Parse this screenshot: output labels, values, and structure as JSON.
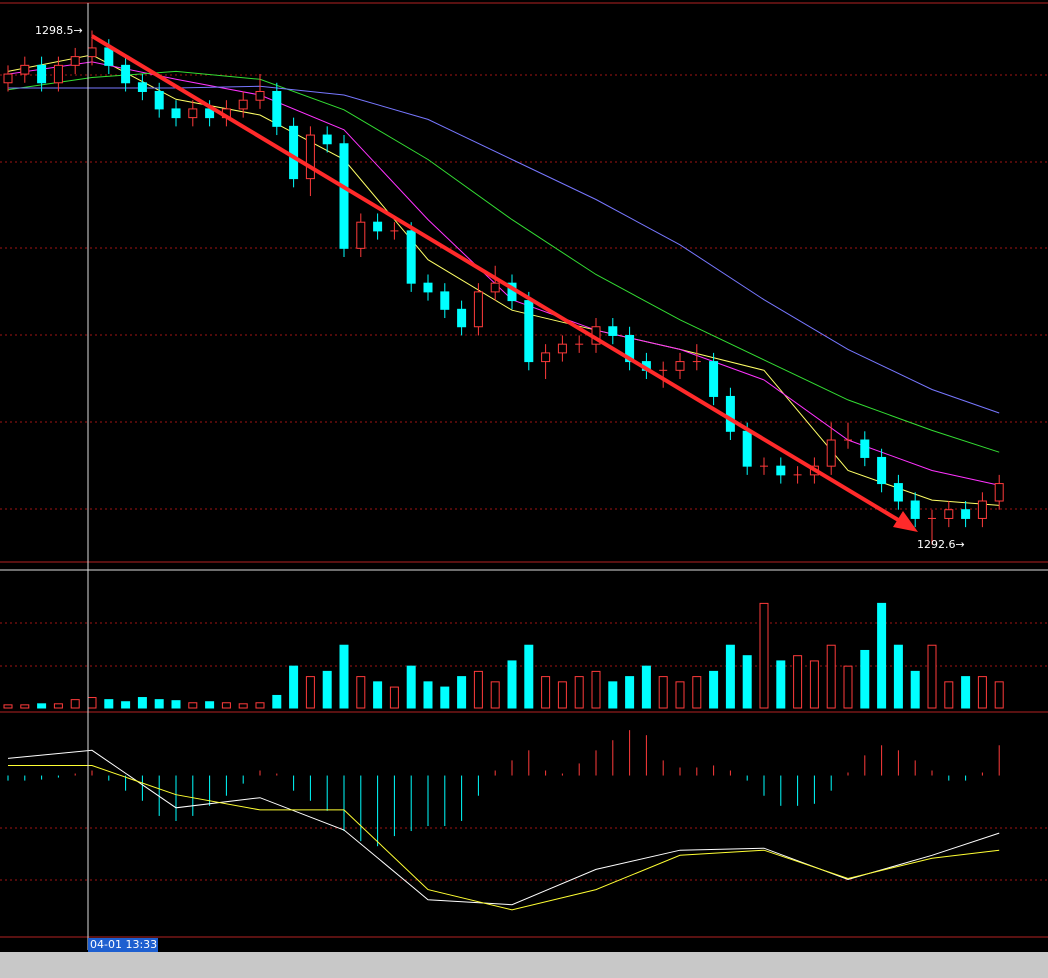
{
  "chart_data": [
    {
      "type": "candlestick",
      "up_color": "#ff3b3b",
      "down_color": "#00ffff",
      "ylim": [
        1292.4,
        1298.85
      ],
      "open": [
        1297.9,
        1298.0,
        1298.1,
        1297.9,
        1298.1,
        1298.2,
        1298.3,
        1298.1,
        1297.9,
        1297.8,
        1297.6,
        1297.5,
        1297.6,
        1297.5,
        1297.6,
        1297.7,
        1297.8,
        1297.4,
        1296.8,
        1297.3,
        1297.2,
        1296.0,
        1296.3,
        1296.2,
        1296.2,
        1295.6,
        1295.5,
        1295.3,
        1295.1,
        1295.5,
        1295.6,
        1295.4,
        1294.7,
        1294.8,
        1294.9,
        1294.9,
        1295.1,
        1295.0,
        1294.7,
        1294.6,
        1294.6,
        1294.7,
        1294.7,
        1294.3,
        1293.9,
        1293.5,
        1293.5,
        1293.4,
        1293.4,
        1293.5,
        1293.8,
        1293.8,
        1293.6,
        1293.3,
        1293.1,
        1292.9,
        1292.9,
        1293.0,
        1292.9,
        1293.1
      ],
      "high": [
        1298.1,
        1298.2,
        1298.2,
        1298.2,
        1298.3,
        1298.5,
        1298.4,
        1298.2,
        1298.0,
        1297.9,
        1297.7,
        1297.7,
        1297.7,
        1297.7,
        1297.8,
        1298.0,
        1297.9,
        1297.5,
        1297.4,
        1297.4,
        1297.3,
        1296.4,
        1296.4,
        1296.3,
        1296.3,
        1295.7,
        1295.6,
        1295.4,
        1295.6,
        1295.8,
        1295.7,
        1295.5,
        1294.9,
        1295.0,
        1295.0,
        1295.2,
        1295.2,
        1295.1,
        1294.8,
        1294.7,
        1294.8,
        1294.9,
        1294.8,
        1294.4,
        1294.0,
        1293.6,
        1293.6,
        1293.5,
        1293.6,
        1294.0,
        1294.0,
        1293.9,
        1293.7,
        1293.4,
        1293.2,
        1293.0,
        1293.1,
        1293.1,
        1293.2,
        1293.4
      ],
      "low": [
        1297.8,
        1297.9,
        1297.8,
        1297.8,
        1298.0,
        1298.1,
        1298.0,
        1297.8,
        1297.7,
        1297.5,
        1297.4,
        1297.4,
        1297.4,
        1297.4,
        1297.5,
        1297.6,
        1297.3,
        1296.7,
        1296.6,
        1297.1,
        1295.9,
        1295.9,
        1296.1,
        1296.1,
        1295.5,
        1295.4,
        1295.2,
        1295.0,
        1295.0,
        1295.4,
        1295.3,
        1294.6,
        1294.5,
        1294.7,
        1294.8,
        1294.8,
        1294.9,
        1294.6,
        1294.5,
        1294.4,
        1294.5,
        1294.6,
        1294.2,
        1293.8,
        1293.4,
        1293.4,
        1293.3,
        1293.3,
        1293.3,
        1293.4,
        1293.7,
        1293.5,
        1293.2,
        1293.0,
        1292.8,
        1292.6,
        1292.8,
        1292.8,
        1292.8,
        1293.0
      ],
      "close": [
        1298.0,
        1298.1,
        1297.9,
        1298.1,
        1298.2,
        1298.3,
        1298.1,
        1297.9,
        1297.8,
        1297.6,
        1297.5,
        1297.6,
        1297.5,
        1297.6,
        1297.7,
        1297.8,
        1297.4,
        1296.8,
        1297.3,
        1297.2,
        1296.0,
        1296.3,
        1296.2,
        1296.2,
        1295.6,
        1295.5,
        1295.3,
        1295.1,
        1295.5,
        1295.6,
        1295.4,
        1294.7,
        1294.8,
        1294.9,
        1294.9,
        1295.1,
        1295.0,
        1294.7,
        1294.6,
        1294.6,
        1294.7,
        1294.7,
        1294.3,
        1293.9,
        1293.5,
        1293.5,
        1293.4,
        1293.4,
        1293.5,
        1293.8,
        1293.8,
        1293.6,
        1293.3,
        1293.1,
        1292.9,
        1292.9,
        1293.0,
        1292.9,
        1293.1,
        1293.3
      ],
      "moving_averages": [
        {
          "color": "#ffff66",
          "values": [
            1298.03,
            1298.22,
            1297.71,
            1297.53,
            1297.02,
            1295.87,
            1295.29,
            1295.06,
            1294.84,
            1294.6,
            1293.45,
            1293.11,
            1293.05
          ]
        },
        {
          "color": "#ff33ff",
          "values": [
            1298.0,
            1298.14,
            1297.94,
            1297.76,
            1297.36,
            1296.33,
            1295.41,
            1295.06,
            1294.84,
            1294.49,
            1293.8,
            1293.45,
            1293.28
          ]
        },
        {
          "color": "#33dd33",
          "values": [
            1297.82,
            1297.96,
            1298.03,
            1297.94,
            1297.59,
            1297.02,
            1296.33,
            1295.7,
            1295.18,
            1294.72,
            1294.26,
            1293.91,
            1293.66
          ]
        },
        {
          "color": "#7777ff",
          "values": [
            1297.84,
            1297.84,
            1297.84,
            1297.86,
            1297.76,
            1297.48,
            1297.02,
            1296.56,
            1296.04,
            1295.41,
            1294.84,
            1294.38,
            1294.11
          ]
        }
      ],
      "annotations": [
        "1298.5→",
        "1292.6→"
      ]
    },
    {
      "type": "volume",
      "ylim": [
        0,
        130
      ],
      "values": [
        3,
        3,
        4,
        4,
        8,
        10,
        8,
        6,
        10,
        8,
        7,
        5,
        6,
        5,
        4,
        5,
        12,
        40,
        30,
        35,
        60,
        30,
        25,
        20,
        40,
        25,
        20,
        30,
        35,
        25,
        45,
        60,
        30,
        25,
        30,
        35,
        25,
        30,
        40,
        30,
        25,
        30,
        35,
        60,
        50,
        100,
        45,
        50,
        45,
        60,
        40,
        55,
        100,
        60,
        35,
        60,
        25,
        30,
        30,
        25
      ]
    },
    {
      "type": "macd",
      "ylim": [
        -1.6,
        0.6
      ],
      "histogram": [
        -0.05,
        -0.05,
        -0.04,
        -0.02,
        0.02,
        0.05,
        -0.05,
        -0.15,
        -0.25,
        -0.4,
        -0.45,
        -0.4,
        -0.3,
        -0.2,
        -0.08,
        0.05,
        0.02,
        -0.15,
        -0.25,
        -0.35,
        -0.55,
        -0.65,
        -0.7,
        -0.6,
        -0.55,
        -0.5,
        -0.5,
        -0.45,
        -0.2,
        0.05,
        0.15,
        0.25,
        0.05,
        0.02,
        0.12,
        0.25,
        0.35,
        0.45,
        0.4,
        0.15,
        0.08,
        0.08,
        0.1,
        0.05,
        -0.05,
        -0.2,
        -0.3,
        -0.3,
        -0.28,
        -0.15,
        0.03,
        0.2,
        0.3,
        0.25,
        0.15,
        0.05,
        -0.05,
        -0.05,
        0.03,
        0.3
      ],
      "dif": {
        "color": "#ffffff",
        "values": [
          0.17,
          0.25,
          -0.32,
          -0.22,
          -0.54,
          -1.23,
          -1.28,
          -0.93,
          -0.74,
          -0.72,
          -1.03,
          -0.79,
          -0.57
        ]
      },
      "dea": {
        "color": "#ffff33",
        "values": [
          0.1,
          0.1,
          -0.19,
          -0.34,
          -0.34,
          -1.13,
          -1.33,
          -1.13,
          -0.79,
          -0.74,
          -1.02,
          -0.82,
          -0.74
        ]
      }
    }
  ],
  "crosshair_label": "04-01 13:33"
}
